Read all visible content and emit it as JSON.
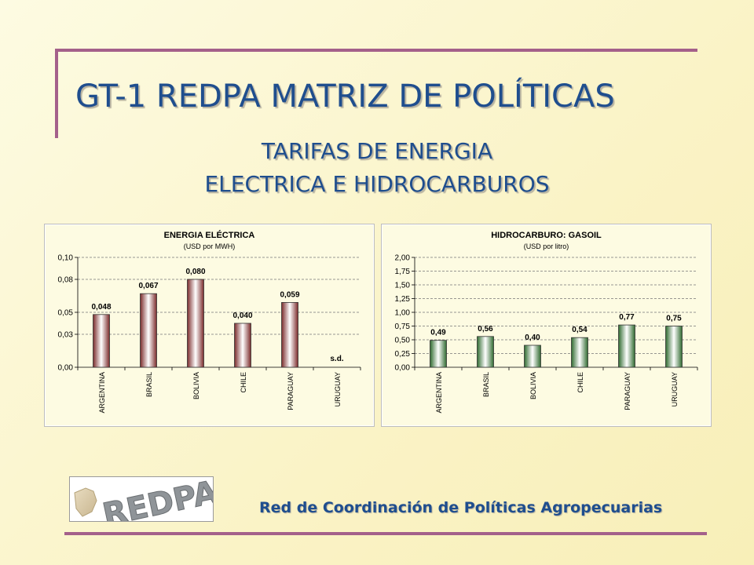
{
  "slide": {
    "title": "GT-1 REDPA MATRIZ DE POLÍTICAS",
    "subtitle_line1": "TARIFAS DE ENERGIA",
    "subtitle_line2": "ELECTRICA E HIDROCARBUROS",
    "footer_text": "Red de Coordinación de Políticas Agropecuarias",
    "logo_text": "REDPA"
  },
  "colors": {
    "heading": "#1f4e8e",
    "rule": "#a4608a",
    "chart_title": "#000000"
  },
  "chart_data": [
    {
      "type": "bar",
      "title": "ENERGIA ELÉCTRICA",
      "subtitle": "(USD por MWH)",
      "categories": [
        "ARGENTINA",
        "BRASIL",
        "BOLIVIA",
        "CHILE",
        "PARAGUAY",
        "URUGUAY"
      ],
      "values": [
        0.048,
        0.067,
        0.08,
        0.04,
        0.059,
        null
      ],
      "value_labels": [
        "0,048",
        "0,067",
        "0,080",
        "0,040",
        "0,059",
        "s.d."
      ],
      "ylim": [
        0,
        0.1
      ],
      "yticks": [
        0,
        0.03,
        0.05,
        0.08,
        0.1
      ],
      "ytick_labels": [
        "0,00",
        "0,03",
        "0,05",
        "0,08",
        "0,10"
      ],
      "grid": true,
      "bar_colors": {
        "dark": "#7a2a2a",
        "light": "#ffffff"
      }
    },
    {
      "type": "bar",
      "title": "HIDROCARBURO: GASOIL",
      "subtitle": "(USD por litro)",
      "categories": [
        "ARGENTINA",
        "BRASIL",
        "BOLIVIA",
        "CHILE",
        "PARAGUAY",
        "URUGUAY"
      ],
      "values": [
        0.49,
        0.56,
        0.4,
        0.54,
        0.77,
        0.75
      ],
      "value_labels": [
        "0,49",
        "0,56",
        "0,40",
        "0,54",
        "0,77",
        "0,75"
      ],
      "ylim": [
        0,
        2.0
      ],
      "yticks": [
        0,
        0.25,
        0.5,
        0.75,
        1.0,
        1.25,
        1.5,
        1.75,
        2.0
      ],
      "ytick_labels": [
        "0,00",
        "0,25",
        "0,50",
        "0,75",
        "1,00",
        "1,25",
        "1,50",
        "1,75",
        "2,00"
      ],
      "grid": true,
      "bar_colors": {
        "dark": "#2f6a2f",
        "light": "#ffffff"
      }
    }
  ]
}
